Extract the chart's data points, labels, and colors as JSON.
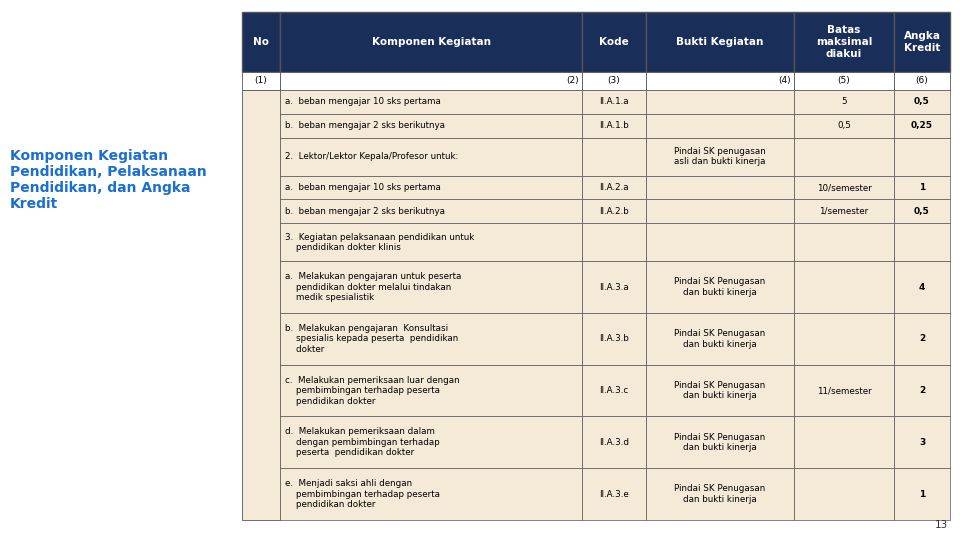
{
  "bg_color": "#ffffff",
  "header_bg": "#1a2e5a",
  "header_text_color": "#ffffff",
  "row_bg": "#f5ead8",
  "subheader_bg": "#ffffff",
  "border_color": "#555555",
  "title_text": "Komponen Kegiatan\nPendidikan, Pelaksanaan\nPendidikan, dan Angka\nKredit",
  "title_color": "#1a6fd4",
  "page_number": "13",
  "headers": [
    "No",
    "Komponen Kegiatan",
    "Kode",
    "Bukti Kegiatan",
    "Batas\nmaksimal\ndiakui",
    "Angka\nKredit"
  ],
  "subheaders": [
    "(1)",
    "(2)",
    "(3)",
    "(4)",
    "(5)",
    "(6)"
  ],
  "rows": [
    {
      "col2": "a.  beban mengajar 10 sks pertama",
      "col3": "II.A.1.a",
      "col4": "",
      "col5": "5",
      "col6": "0,5",
      "nlines": 1
    },
    {
      "col2": "b.  beban mengajar 2 sks berikutnya",
      "col3": "II.A.1.b",
      "col4": "",
      "col5": "0,5",
      "col6": "0,25",
      "nlines": 1
    },
    {
      "col2": "2.  Lektor/Lektor Kepala/Profesor untuk:",
      "col3": "",
      "col4": "Pindai SK penugasan\nasli dan bukti kinerja",
      "col5": "",
      "col6": "",
      "nlines": 2
    },
    {
      "col2": "a.  beban mengajar 10 sks pertama",
      "col3": "II.A.2.a",
      "col4": "",
      "col5": "10/semester",
      "col6": "1",
      "nlines": 1
    },
    {
      "col2": "b.  beban mengajar 2 sks berikutnya",
      "col3": "II.A.2.b",
      "col4": "",
      "col5": "1/semester",
      "col6": "0,5",
      "nlines": 1
    },
    {
      "col2": "3.  Kegiatan pelaksanaan pendidikan untuk\n    pendidikan dokter klinis",
      "col3": "",
      "col4": "",
      "col5": "",
      "col6": "",
      "nlines": 2
    },
    {
      "col2": "a.  Melakukan pengajaran untuk peserta\n    pendidikan dokter melalui tindakan\n    medik spesialistik",
      "col3": "II.A.3.a",
      "col4": "Pindai SK Penugasan\ndan bukti kinerja",
      "col5": "",
      "col6": "4",
      "nlines": 3
    },
    {
      "col2": "b.  Melakukan pengajaran  Konsultasi\n    spesialis kepada peserta  pendidikan\n    dokter",
      "col3": "II.A.3.b",
      "col4": "Pindai SK Penugasan\ndan bukti kinerja",
      "col5": "",
      "col6": "2",
      "nlines": 3
    },
    {
      "col2": "c.  Melakukan pemeriksaan luar dengan\n    pembimbingan terhadap peserta\n    pendidikan dokter",
      "col3": "II.A.3.c",
      "col4": "Pindai SK Penugasan\ndan bukti kinerja",
      "col5": "11/semester",
      "col6": "2",
      "nlines": 3
    },
    {
      "col2": "d.  Melakukan pemeriksaan dalam\n    dengan pembimbingan terhadap\n    peserta  pendidikan dokter",
      "col3": "II.A.3.d",
      "col4": "Pindai SK Penugasan\ndan bukti kinerja",
      "col5": "",
      "col6": "3",
      "nlines": 3
    },
    {
      "col2": "e.  Menjadi saksi ahli dengan\n    pembimbingan terhadap peserta\n    pendidikan dokter",
      "col3": "II.A.3.e",
      "col4": "Pindai SK Penugasan\ndan bukti kinerja",
      "col5": "",
      "col6": "1",
      "nlines": 3
    }
  ]
}
